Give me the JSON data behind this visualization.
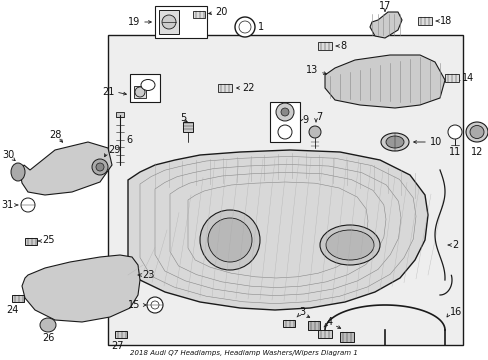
{
  "title": "2018 Audi Q7 Headlamps, Headlamp Washers/Wipers Diagram 1",
  "bg_color": "#ffffff",
  "box_fill": "#f0f0f0",
  "line_color": "#1a1a1a",
  "text_color": "#111111",
  "fig_w": 4.89,
  "fig_h": 3.6,
  "dpi": 100
}
